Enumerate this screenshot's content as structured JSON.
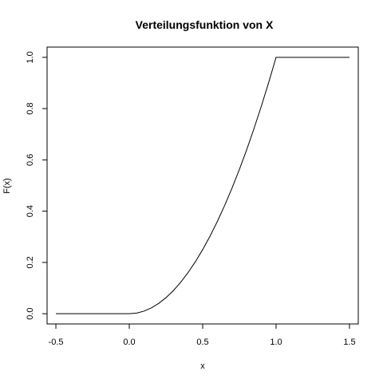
{
  "chart_data": {
    "type": "line",
    "title": "Verteilungsfunktion von X",
    "xlabel": "x",
    "ylabel": "F(x)",
    "xlim": [
      -0.56,
      1.56
    ],
    "ylim": [
      -0.04,
      1.04
    ],
    "x_ticks": [
      -0.5,
      0.0,
      0.5,
      1.0,
      1.5
    ],
    "x_tick_labels": [
      "-0.5",
      "0.0",
      "0.5",
      "1.0",
      "1.5"
    ],
    "y_ticks": [
      0.0,
      0.2,
      0.4,
      0.6,
      0.8,
      1.0
    ],
    "y_tick_labels": [
      "0.0",
      "0.2",
      "0.4",
      "0.6",
      "0.8",
      "1.0"
    ],
    "grid": false,
    "series": [
      {
        "x": [
          -0.5,
          0.0,
          0.05,
          0.1,
          0.15,
          0.2,
          0.25,
          0.3,
          0.35,
          0.4,
          0.45,
          0.5,
          0.55,
          0.6,
          0.65,
          0.7,
          0.75,
          0.8,
          0.85,
          0.9,
          0.95,
          1.0,
          1.5
        ],
        "y": [
          0.0,
          0.0,
          0.0025,
          0.01,
          0.0225,
          0.04,
          0.0625,
          0.09,
          0.1225,
          0.16,
          0.2025,
          0.25,
          0.3025,
          0.36,
          0.4225,
          0.49,
          0.5625,
          0.64,
          0.7225,
          0.81,
          0.9025,
          1.0,
          1.0
        ]
      }
    ]
  }
}
